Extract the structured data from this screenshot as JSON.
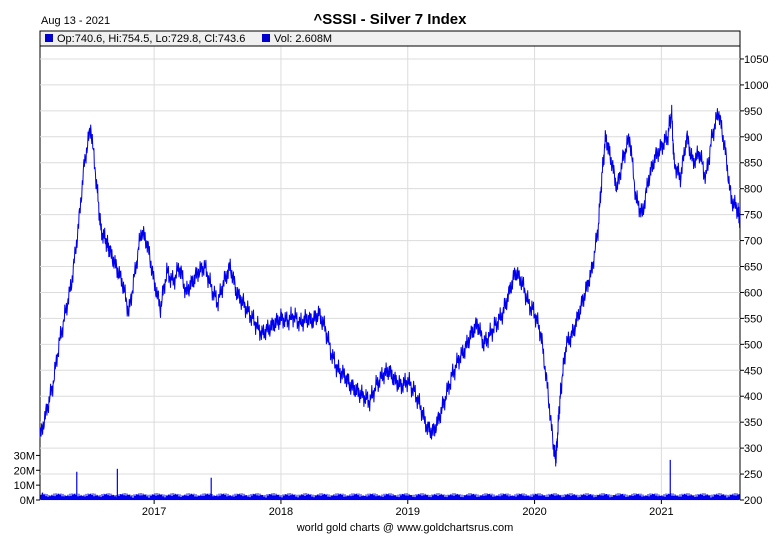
{
  "header": {
    "date": "Aug 13 - 2021",
    "title": "^SSSI - Silver 7 Index",
    "ohlc_text": "Op:740.6, Hi:754.5, Lo:729.8, Cl:743.6",
    "vol_text": "Vol: 2.608M"
  },
  "footer": {
    "credit": "world gold charts @ www.goldchartsrus.com"
  },
  "colors": {
    "series": "#0000ee",
    "grid": "#dcdcdc",
    "axis": "#000000",
    "legend_square": "#0000cc"
  },
  "chart_data": {
    "type": "line",
    "title": "^SSSI - Silver 7 Index",
    "y_ticks": [
      200,
      250,
      300,
      350,
      400,
      450,
      500,
      550,
      600,
      650,
      700,
      750,
      800,
      850,
      900,
      950,
      1000,
      1050
    ],
    "ylim": [
      200,
      1075
    ],
    "x_ticks": [
      "2017",
      "2018",
      "2019",
      "2020",
      "2021"
    ],
    "x_tick_years": [
      2017,
      2018,
      2019,
      2020,
      2021
    ],
    "xlim": [
      2016.1,
      2021.62
    ],
    "volume_ticks": [
      "0M",
      "10M",
      "20M",
      "30M"
    ],
    "volume_values": [
      0,
      10,
      20,
      30
    ],
    "grid": true,
    "series": [
      {
        "x": [
          2016.1,
          2016.15,
          2016.2,
          2016.25,
          2016.3,
          2016.35,
          2016.4,
          2016.45,
          2016.5,
          2016.55,
          2016.58,
          2016.62,
          2016.65,
          2016.7,
          2016.75,
          2016.8,
          2016.85,
          2016.9,
          2016.95,
          2017.0,
          2017.05,
          2017.1,
          2017.15,
          2017.2,
          2017.25,
          2017.3,
          2017.35,
          2017.4,
          2017.45,
          2017.5,
          2017.55,
          2017.6,
          2017.65,
          2017.7,
          2017.75,
          2017.8,
          2017.85,
          2017.9,
          2017.95,
          2018.0,
          2018.05,
          2018.1,
          2018.15,
          2018.2,
          2018.25,
          2018.3,
          2018.35,
          2018.4,
          2018.45,
          2018.5,
          2018.55,
          2018.6,
          2018.65,
          2018.7,
          2018.75,
          2018.8,
          2018.85,
          2018.9,
          2018.95,
          2019.0,
          2019.05,
          2019.1,
          2019.15,
          2019.2,
          2019.25,
          2019.3,
          2019.35,
          2019.4,
          2019.45,
          2019.5,
          2019.55,
          2019.6,
          2019.65,
          2019.7,
          2019.75,
          2019.8,
          2019.85,
          2019.9,
          2019.95,
          2020.0,
          2020.05,
          2020.1,
          2020.15,
          2020.17,
          2020.19,
          2020.21,
          2020.25,
          2020.3,
          2020.35,
          2020.4,
          2020.45,
          2020.5,
          2020.53,
          2020.56,
          2020.6,
          2020.65,
          2020.7,
          2020.75,
          2020.8,
          2020.85,
          2020.9,
          2020.95,
          2021.0,
          2021.05,
          2021.08,
          2021.1,
          2021.15,
          2021.2,
          2021.25,
          2021.3,
          2021.35,
          2021.4,
          2021.45,
          2021.5,
          2021.55,
          2021.6,
          2021.62
        ],
        "values": [
          320,
          370,
          420,
          500,
          560,
          620,
          720,
          850,
          920,
          800,
          720,
          700,
          680,
          650,
          620,
          560,
          640,
          720,
          690,
          620,
          570,
          640,
          620,
          650,
          600,
          620,
          640,
          650,
          610,
          580,
          620,
          650,
          600,
          580,
          560,
          540,
          520,
          530,
          540,
          550,
          545,
          555,
          540,
          550,
          545,
          560,
          530,
          480,
          450,
          440,
          420,
          410,
          400,
          390,
          420,
          440,
          450,
          430,
          420,
          430,
          410,
          380,
          340,
          330,
          360,
          400,
          440,
          470,
          490,
          520,
          540,
          500,
          520,
          540,
          560,
          600,
          640,
          620,
          580,
          560,
          520,
          420,
          300,
          280,
          360,
          420,
          500,
          520,
          560,
          600,
          640,
          720,
          820,
          900,
          860,
          800,
          860,
          900,
          780,
          750,
          820,
          860,
          880,
          900,
          950,
          850,
          820,
          900,
          850,
          870,
          820,
          900,
          950,
          880,
          780,
          760,
          740
        ]
      }
    ],
    "volume_series": {
      "x": [
        2016.12,
        2016.39,
        2016.71,
        2017.45,
        2021.07
      ],
      "values": [
        5,
        19,
        21,
        15,
        27
      ]
    }
  }
}
